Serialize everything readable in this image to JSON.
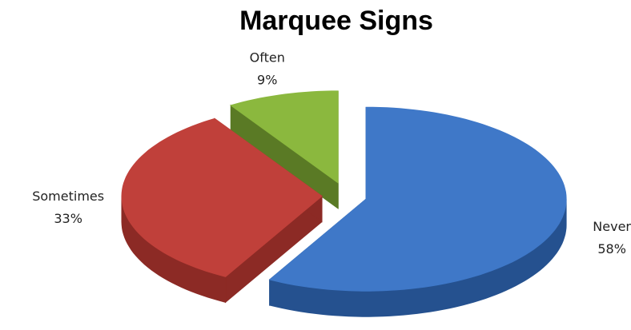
{
  "chart_data": {
    "type": "pie",
    "title": "Marquee Signs",
    "categories": [
      "Never",
      "Sometimes",
      "Often"
    ],
    "values": [
      58,
      33,
      9
    ],
    "value_labels": [
      "58%",
      "33%",
      "9%"
    ],
    "colors": [
      "#3f78c8",
      "#c0403a",
      "#8bb83e"
    ],
    "side_colors": [
      "#25518f",
      "#8c2a25",
      "#5a7a25"
    ]
  }
}
